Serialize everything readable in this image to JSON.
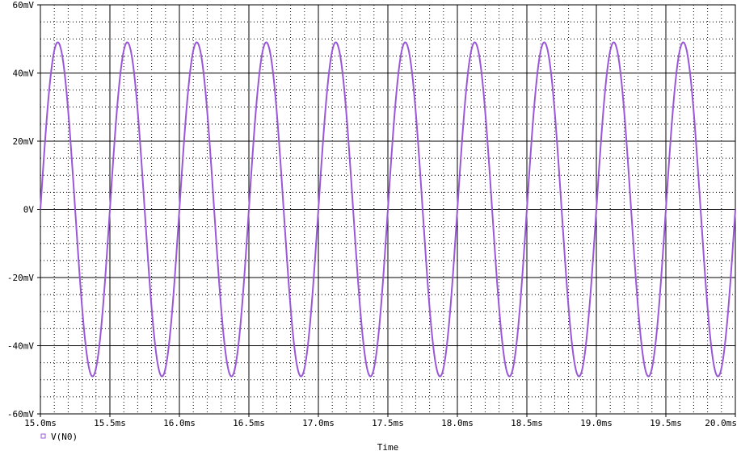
{
  "chart_data": {
    "type": "line",
    "title": "",
    "xlabel": "Time",
    "ylabel": "",
    "x_unit": "ms",
    "y_unit": "mV",
    "xlim": [
      15.0,
      20.0
    ],
    "ylim": [
      -60,
      60
    ],
    "x_ticks": [
      15.0,
      15.5,
      16.0,
      16.5,
      17.0,
      17.5,
      18.0,
      18.5,
      19.0,
      19.5,
      20.0
    ],
    "x_tick_labels": [
      "15.0ms",
      "15.5ms",
      "16.0ms",
      "16.5ms",
      "17.0ms",
      "17.5ms",
      "18.0ms",
      "18.5ms",
      "19.0ms",
      "19.5ms",
      "20.0ms"
    ],
    "y_ticks": [
      60,
      40,
      20,
      0,
      -20,
      -40,
      -60
    ],
    "y_tick_labels": [
      "60mV",
      "40mV",
      "20mV",
      "0V",
      "-20mV",
      "-40mV",
      "-60mV"
    ],
    "grid": true,
    "minor_grid": true,
    "legend_position": "bottom-left",
    "series": [
      {
        "name": "V(N0)",
        "color": "#9a58d8",
        "waveform": "sine",
        "amplitude": 49,
        "frequency_khz": 2.0,
        "phase_start_ms": 15.0,
        "offset": 0
      }
    ]
  }
}
